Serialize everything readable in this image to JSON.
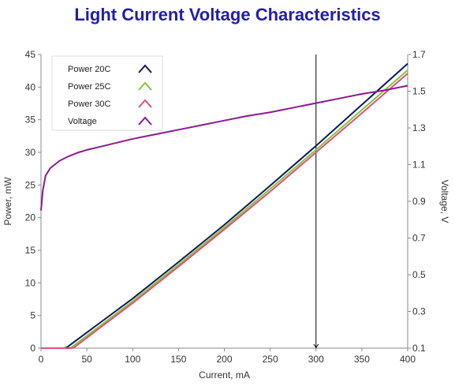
{
  "chart_data": {
    "type": "line",
    "title": "Light Current Voltage Characteristics",
    "xlabel": "Current, mA",
    "ylabel": "Power, mW",
    "y2label": "Voltage, V",
    "xlim": [
      0,
      400
    ],
    "ylim": [
      0,
      45
    ],
    "y2lim": [
      0.1,
      1.7
    ],
    "xticks": [
      "0",
      "50",
      "100",
      "150",
      "200",
      "250",
      "300",
      "350",
      "400"
    ],
    "yticks": [
      "0",
      "5",
      "10",
      "15",
      "20",
      "25",
      "30",
      "35",
      "40",
      "45"
    ],
    "y2ticks": [
      "0.1",
      "0.3",
      "0.5",
      "0.7",
      "0.9",
      "1.1",
      "1.3",
      "1.5",
      "1.7"
    ],
    "grid": false,
    "legend_position": "top-left",
    "cursor_x": 300,
    "series": [
      {
        "name": "Power 20C",
        "axis": "left",
        "color": "#0d1a5c",
        "x": [
          0,
          25,
          28,
          50,
          100,
          150,
          200,
          250,
          300,
          350,
          400
        ],
        "y": [
          0,
          0,
          0.1,
          2.4,
          7.6,
          13.2,
          18.9,
          24.9,
          31.0,
          37.3,
          43.6
        ]
      },
      {
        "name": "Power 25C",
        "axis": "left",
        "color": "#7fc93a",
        "x": [
          0,
          30,
          33,
          50,
          100,
          150,
          200,
          250,
          300,
          350,
          400
        ],
        "y": [
          0,
          0,
          0.1,
          1.9,
          7.2,
          12.8,
          18.5,
          24.4,
          30.4,
          36.5,
          42.6
        ]
      },
      {
        "name": "Power 30C",
        "axis": "left",
        "color": "#e0507a",
        "x": [
          0,
          33,
          36,
          50,
          100,
          150,
          200,
          250,
          300,
          350,
          400
        ],
        "y": [
          0,
          0,
          0.1,
          1.6,
          6.9,
          12.5,
          18.2,
          24.0,
          30.0,
          36.0,
          42.1
        ]
      },
      {
        "name": "Voltage",
        "axis": "right",
        "color": "#8b1a8f",
        "x": [
          0,
          2,
          5,
          10,
          20,
          30,
          40,
          50,
          75,
          100,
          125,
          150,
          175,
          200,
          225,
          250,
          275,
          300,
          325,
          350,
          375,
          400
        ],
        "y": [
          0.85,
          0.96,
          1.04,
          1.08,
          1.12,
          1.145,
          1.165,
          1.18,
          1.21,
          1.24,
          1.265,
          1.29,
          1.315,
          1.34,
          1.365,
          1.385,
          1.41,
          1.435,
          1.46,
          1.485,
          1.505,
          1.53
        ]
      }
    ]
  }
}
